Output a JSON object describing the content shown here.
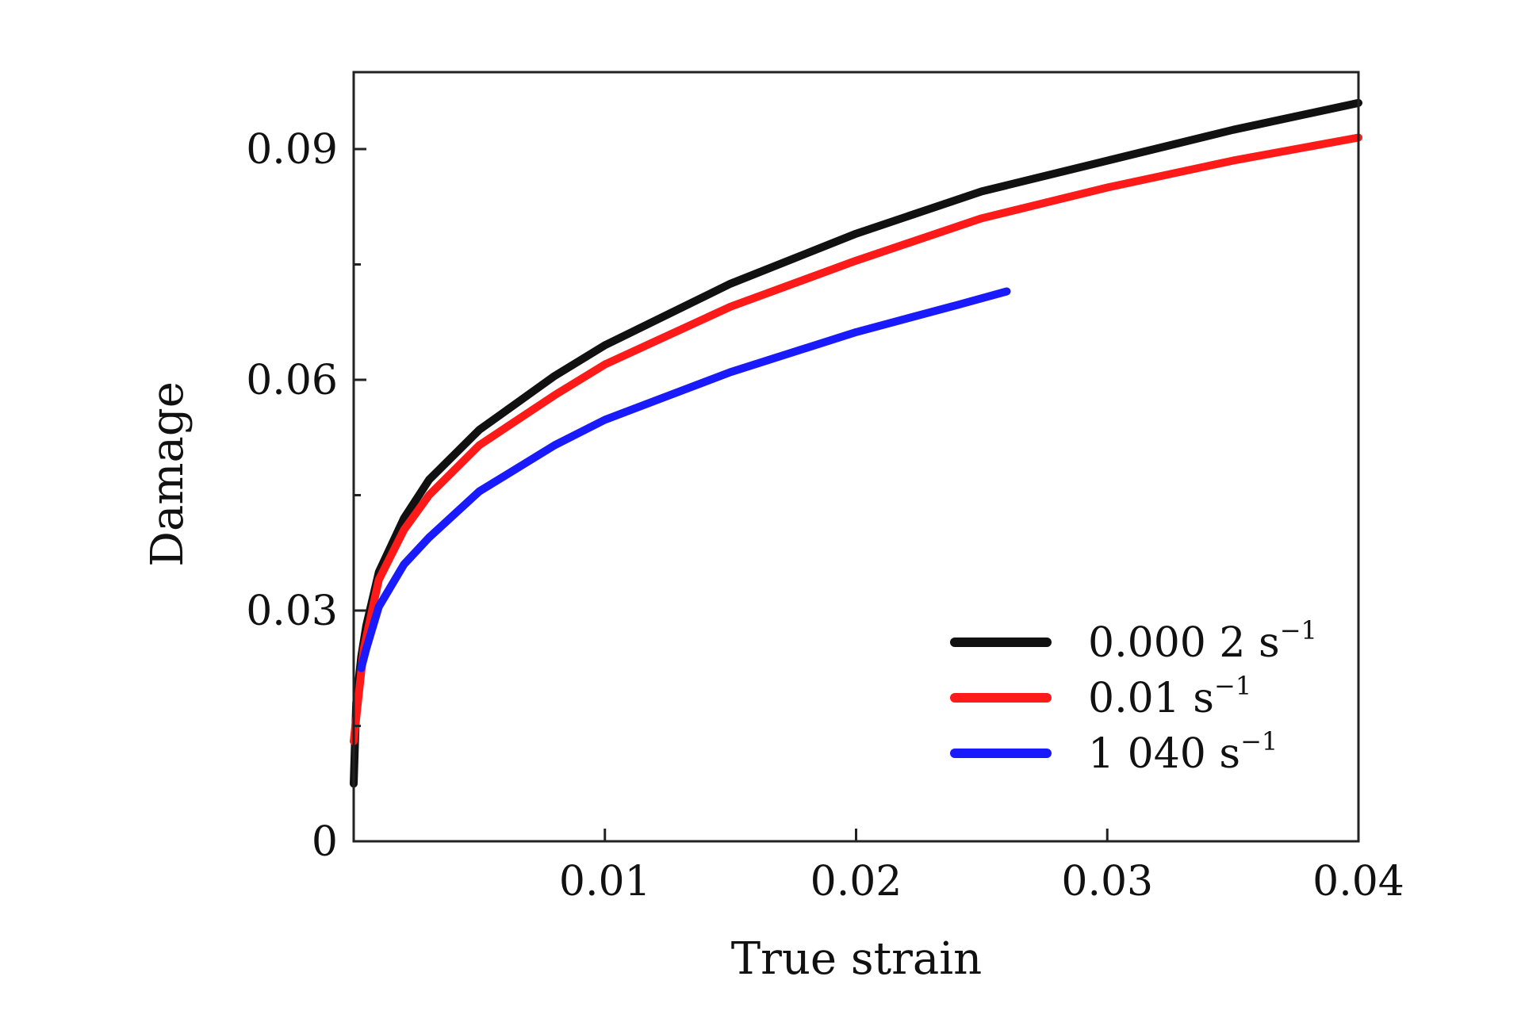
{
  "chart_data": {
    "type": "line",
    "xlabel": "True strain",
    "ylabel": "Damage",
    "xlim": [
      0,
      0.04
    ],
    "ylim": [
      0,
      0.1
    ],
    "x_ticks": [
      {
        "value": 0.01,
        "label": "0.01"
      },
      {
        "value": 0.02,
        "label": "0.02"
      },
      {
        "value": 0.03,
        "label": "0.03"
      },
      {
        "value": 0.04,
        "label": "0.04"
      }
    ],
    "y_ticks": [
      {
        "value": 0,
        "label": "0"
      },
      {
        "value": 0.03,
        "label": "0.03"
      },
      {
        "value": 0.06,
        "label": "0.06"
      },
      {
        "value": 0.09,
        "label": "0.09"
      }
    ],
    "y_minor_ticks": [
      0.015,
      0.045,
      0.075
    ],
    "grid": false,
    "legend_position": "bottom-right",
    "series": [
      {
        "name": "0.000 2 s",
        "unit_exponent": "−1",
        "color": "#111111",
        "x": [
          0,
          0.0001,
          0.0003,
          0.0005,
          0.001,
          0.002,
          0.003,
          0.005,
          0.008,
          0.01,
          0.015,
          0.02,
          0.025,
          0.03,
          0.035,
          0.04
        ],
        "y": [
          0.0075,
          0.018,
          0.024,
          0.028,
          0.035,
          0.042,
          0.047,
          0.0535,
          0.0605,
          0.0645,
          0.0725,
          0.079,
          0.0845,
          0.0885,
          0.0925,
          0.096
        ]
      },
      {
        "name": "0.01 s",
        "unit_exponent": "−1",
        "color": "#ff1a1a",
        "x": [
          0,
          0.0002,
          0.0004,
          0.0008,
          0.001,
          0.002,
          0.003,
          0.005,
          0.008,
          0.01,
          0.015,
          0.02,
          0.025,
          0.03,
          0.035,
          0.04
        ],
        "y": [
          0.013,
          0.019,
          0.025,
          0.031,
          0.034,
          0.0405,
          0.045,
          0.0515,
          0.058,
          0.062,
          0.0695,
          0.0755,
          0.081,
          0.085,
          0.0885,
          0.0915
        ]
      },
      {
        "name": "1 040 s",
        "unit_exponent": "−1",
        "color": "#1a1aff",
        "x": [
          0.0003,
          0.0005,
          0.001,
          0.002,
          0.003,
          0.005,
          0.008,
          0.01,
          0.015,
          0.02,
          0.024,
          0.026
        ],
        "y": [
          0.0225,
          0.025,
          0.0305,
          0.036,
          0.0395,
          0.0455,
          0.0515,
          0.0548,
          0.061,
          0.0662,
          0.0697,
          0.0715
        ]
      }
    ]
  }
}
